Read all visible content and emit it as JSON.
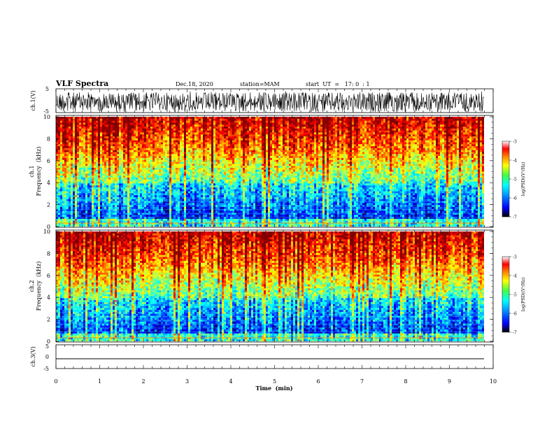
{
  "header": {
    "title": "VLF Spectra",
    "date": "Dec.18, 2020",
    "station": "station=MAM",
    "start_ut": "start  UT  =   17: 0  : 1"
  },
  "chart_data": [
    {
      "type": "line",
      "ylabel": "ch.1(V)",
      "ylim": [
        -5,
        5
      ],
      "yticks": [
        "5",
        "-5"
      ],
      "xlim": [
        0,
        10
      ],
      "pattern": "dense noisy waveform spanning most of the range"
    },
    {
      "type": "heatmap",
      "ylabel_top": "ch.1",
      "ylabel": "Frequency  (kHz)",
      "ylim": [
        0,
        10
      ],
      "yticks": [
        "0",
        "2",
        "4",
        "6",
        "8",
        "10"
      ],
      "xlim": [
        0,
        10
      ],
      "colorbar": {
        "label": "log(PSD)(V²/Hz)",
        "range": [
          -7,
          -3
        ],
        "ticks": [
          "-3",
          "-4",
          "-5",
          "-6",
          "-7"
        ]
      }
    },
    {
      "type": "heatmap",
      "ylabel_top": "ch.2",
      "ylabel": "Frequency  (kHz)",
      "ylim": [
        0,
        10
      ],
      "yticks": [
        "0",
        "2",
        "4",
        "6",
        "8",
        "10"
      ],
      "xlim": [
        0,
        10
      ],
      "colorbar": {
        "label": "log(PSD)(V²/Hz)",
        "range": [
          -7,
          -3
        ],
        "ticks": [
          "-3",
          "-4",
          "-5",
          "-6",
          "-7"
        ]
      }
    },
    {
      "type": "line",
      "ylabel": "ch.3(V)",
      "ylim": [
        -5,
        5
      ],
      "yticks": [
        "5",
        "0",
        "-5"
      ],
      "xlim": [
        0,
        10
      ],
      "values": [
        {
          "x": 0,
          "y": -2
        },
        {
          "x": 9.8,
          "y": -2
        }
      ]
    }
  ],
  "x_axis": {
    "xlabel": "Time  (min)",
    "ticks": [
      "0",
      "1",
      "2",
      "3",
      "4",
      "5",
      "6",
      "7",
      "8",
      "9",
      "10"
    ]
  },
  "palette": {
    "jet": [
      "#000080",
      "#0000ff",
      "#0080ff",
      "#00ffff",
      "#40ff80",
      "#ffff00",
      "#ff8000",
      "#ff0000",
      "#ffffff"
    ]
  }
}
